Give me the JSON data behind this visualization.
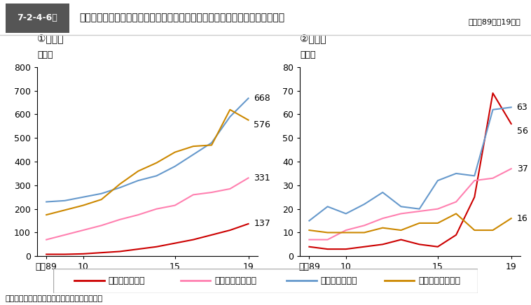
{
  "title": "7-2-4-6図　高齢新受刑者の男女別・初入・再入別・窃盗犯及びその他の犯罪人員の推移",
  "subtitle": "（平成89年～19年）",
  "note": "注　法務省大臣官房司法法制部の資料による。",
  "years": [
    8,
    9,
    10,
    11,
    12,
    13,
    14,
    15,
    16,
    17,
    18,
    19
  ],
  "male": {
    "shonyu_settou": [
      8,
      8,
      10,
      15,
      20,
      30,
      40,
      55,
      70,
      90,
      110,
      137
    ],
    "shonyu_other": [
      70,
      90,
      110,
      130,
      155,
      175,
      200,
      215,
      260,
      270,
      285,
      331
    ],
    "sainyu_settou": [
      230,
      235,
      250,
      265,
      290,
      320,
      340,
      380,
      430,
      480,
      590,
      668
    ],
    "sainyu_other": [
      175,
      195,
      215,
      240,
      305,
      360,
      395,
      440,
      465,
      470,
      620,
      576
    ]
  },
  "female": {
    "shonyu_settou": [
      4,
      3,
      3,
      4,
      5,
      7,
      5,
      4,
      9,
      25,
      69,
      56
    ],
    "shonyu_other": [
      7,
      7,
      11,
      13,
      16,
      18,
      19,
      20,
      23,
      32,
      33,
      37
    ],
    "sainyu_settou": [
      15,
      21,
      18,
      22,
      27,
      21,
      20,
      32,
      35,
      34,
      62,
      63
    ],
    "sainyu_other": [
      11,
      10,
      10,
      10,
      12,
      11,
      14,
      14,
      18,
      11,
      11,
      16
    ]
  },
  "colors": {
    "shonyu_settou": "#cc0000",
    "shonyu_other": "#ff80b0",
    "sainyu_settou": "#6699cc",
    "sainyu_other": "#cc8800"
  },
  "legend_labels": [
    "初入者（窃盗）",
    "初入者（その他）",
    "再入者（窃盗）",
    "再入者（その他）"
  ],
  "male_title": "①　男子",
  "female_title": "②　女子",
  "ylabel": "（人）",
  "xlabel_label": "平成89",
  "male_yticks": [
    0,
    100,
    200,
    300,
    400,
    500,
    600,
    700,
    800
  ],
  "female_yticks": [
    0,
    10,
    20,
    30,
    40,
    50,
    60,
    70,
    80
  ],
  "xtick_labels": [
    "平成89",
    "10",
    "15",
    "19"
  ],
  "xtick_positions": [
    8,
    10,
    15,
    19
  ]
}
